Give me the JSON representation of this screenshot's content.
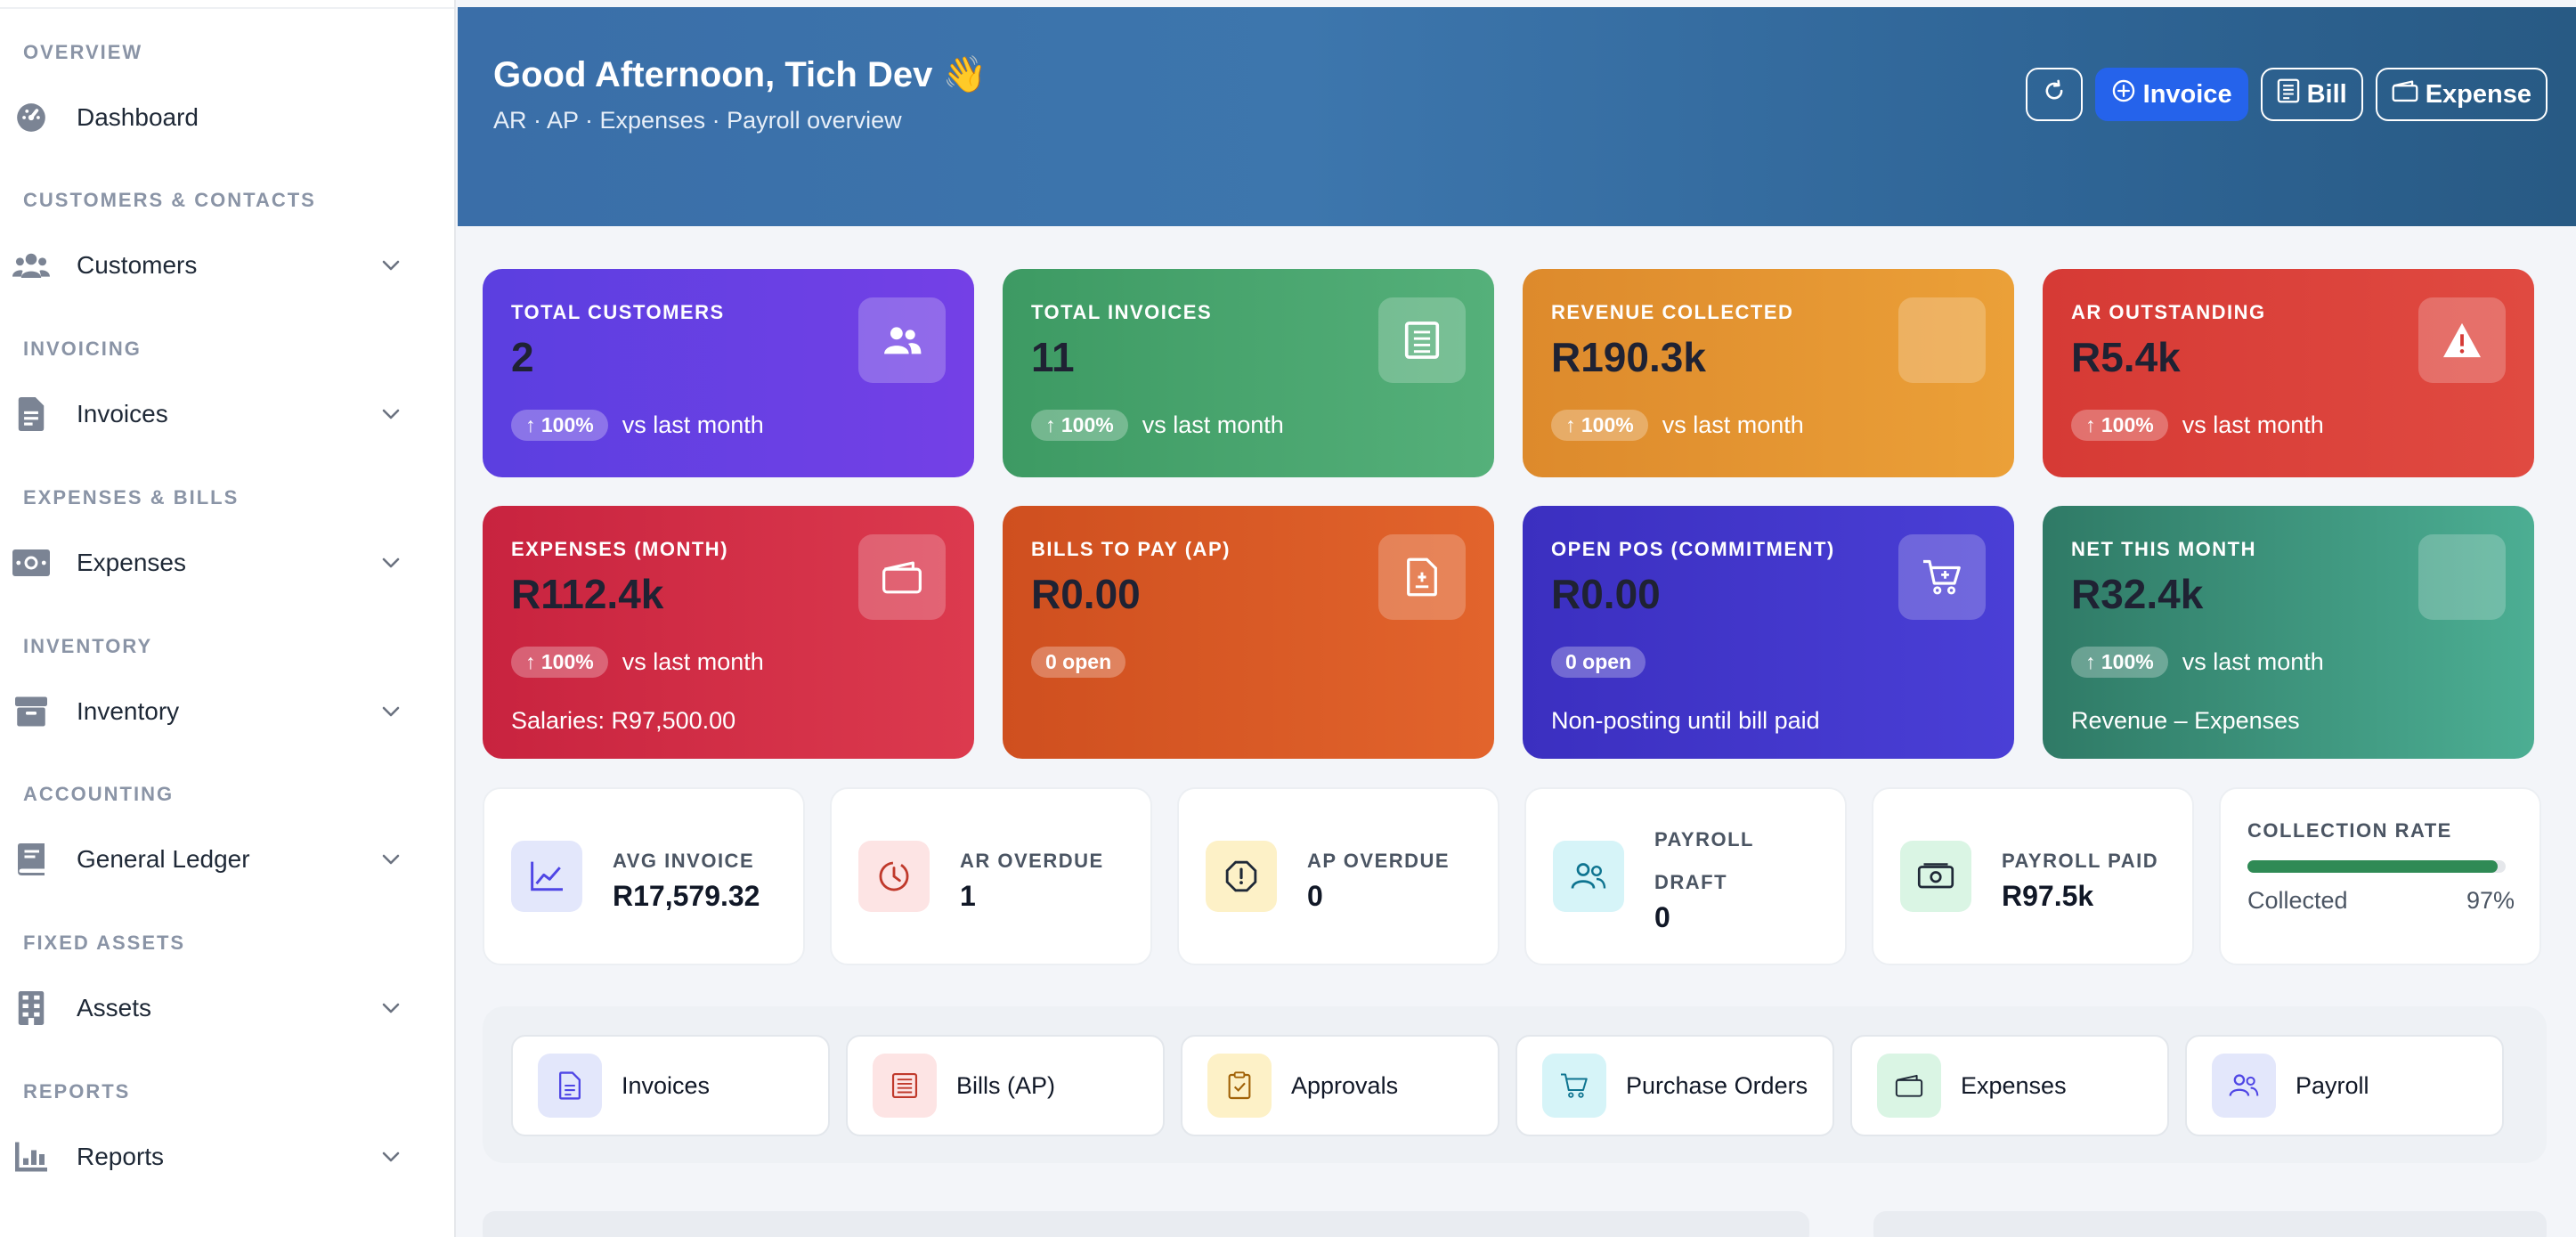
{
  "sidebar": {
    "sections": [
      {
        "title": "OVERVIEW",
        "items": [
          {
            "label": "Dashboard",
            "icon": "dashboard-icon",
            "has_chevron": false
          }
        ]
      },
      {
        "title": "CUSTOMERS & CONTACTS",
        "items": [
          {
            "label": "Customers",
            "icon": "users-icon",
            "has_chevron": true
          }
        ]
      },
      {
        "title": "INVOICING",
        "items": [
          {
            "label": "Invoices",
            "icon": "invoice-icon",
            "has_chevron": true
          }
        ]
      },
      {
        "title": "EXPENSES & BILLS",
        "items": [
          {
            "label": "Expenses",
            "icon": "money-icon",
            "has_chevron": true
          }
        ]
      },
      {
        "title": "INVENTORY",
        "items": [
          {
            "label": "Inventory",
            "icon": "box-icon",
            "has_chevron": true
          }
        ]
      },
      {
        "title": "ACCOUNTING",
        "items": [
          {
            "label": "General Ledger",
            "icon": "ledger-icon",
            "has_chevron": true
          }
        ]
      },
      {
        "title": "FIXED ASSETS",
        "items": [
          {
            "label": "Assets",
            "icon": "building-icon",
            "has_chevron": true
          }
        ]
      },
      {
        "title": "REPORTS",
        "items": [
          {
            "label": "Reports",
            "icon": "report-chart-icon",
            "has_chevron": true
          }
        ]
      }
    ]
  },
  "header": {
    "title": "Good Afternoon, Tich Dev 👋",
    "subtitle": "AR · AP · Expenses · Payroll overview",
    "actions": {
      "refresh_icon": "refresh-icon",
      "invoice_label": "Invoice",
      "bill_label": "Bill",
      "expense_label": "Expense"
    }
  },
  "stats": [
    {
      "label": "TOTAL CUSTOMERS",
      "value": "2",
      "trend": "↑ 100%",
      "trend_text": "vs last month",
      "extra": "",
      "icon": "users-icon",
      "gradient": [
        "#5b3fe0",
        "#7440e6"
      ]
    },
    {
      "label": "TOTAL INVOICES",
      "value": "11",
      "trend": "↑ 100%",
      "trend_text": "vs last month",
      "extra": "",
      "icon": "receipt-icon",
      "gradient": [
        "#3d9a63",
        "#55b07a"
      ]
    },
    {
      "label": "REVENUE COLLECTED",
      "value": "R190.3k",
      "trend": "↑ 100%",
      "trend_text": "vs last month",
      "extra": "",
      "icon": "",
      "gradient": [
        "#dd8a2c",
        "#eba038"
      ]
    },
    {
      "label": "AR OUTSTANDING",
      "value": "R5.4k",
      "trend": "↑ 100%",
      "trend_text": "vs last month",
      "extra": "",
      "icon": "warning-icon",
      "gradient": [
        "#d63a35",
        "#e04a41"
      ]
    },
    {
      "label": "EXPENSES (MONTH)",
      "value": "R112.4k",
      "trend": "↑ 100%",
      "trend_text": "vs last month",
      "extra": "Salaries: R97,500.00",
      "icon": "wallet-icon",
      "gradient": [
        "#c8233f",
        "#dc3a4e"
      ]
    },
    {
      "label": "BILLS TO PAY (AP)",
      "value": "R0.00",
      "trend": "0 open",
      "trend_text": "",
      "extra": "",
      "icon": "bill-icon",
      "gradient": [
        "#cf4f1f",
        "#e2642c"
      ]
    },
    {
      "label": "OPEN POS (COMMITMENT)",
      "value": "R0.00",
      "trend": "0 open",
      "trend_text": "",
      "extra": "Non-posting until bill paid",
      "icon": "cart-icon",
      "gradient": [
        "#3b2fc0",
        "#4a3fd6"
      ]
    },
    {
      "label": "NET THIS MONTH",
      "value": "R32.4k",
      "trend": "↑ 100%",
      "trend_text": "vs last month",
      "extra": "Revenue – Expenses",
      "icon": "",
      "gradient": [
        "#2f7a66",
        "#4cae93"
      ]
    }
  ],
  "mini_stats": [
    {
      "label": "AVG INVOICE",
      "value": "R17,579.32",
      "icon": "trend-chart-icon",
      "icon_bg": "#e3e7fb",
      "icon_color": "#4f46e5"
    },
    {
      "label": "AR OVERDUE",
      "value": "1",
      "icon": "clock-icon",
      "icon_bg": "#fde4e4",
      "icon_color": "#c0392b"
    },
    {
      "label": "AP OVERDUE",
      "value": "0",
      "icon": "alert-octagon-icon",
      "icon_bg": "#fdf1c7",
      "icon_color": "#a16207"
    },
    {
      "label_line1": "PAYROLL",
      "label_line2": "DRAFT",
      "value": "0",
      "icon": "users-outline-icon",
      "icon_bg": "#d6f4f8",
      "icon_color": "#0e7490"
    },
    {
      "label": "PAYROLL PAID",
      "value": "R97.5k",
      "icon": "cash-icon",
      "icon_bg": "#daf5e4",
      "icon_color": "#15803d"
    }
  ],
  "collection": {
    "label": "COLLECTION RATE",
    "caption": "Collected",
    "percent_text": "97%",
    "percent": 97,
    "bar_color": "#2f8a55"
  },
  "quick_links": [
    {
      "label": "Invoices",
      "icon": "document-icon",
      "icon_bg": "#e3e7fb",
      "icon_color": "#4f46e5"
    },
    {
      "label": "Bills (AP)",
      "icon": "receipt-list-icon",
      "icon_bg": "#fde4e4",
      "icon_color": "#c0392b"
    },
    {
      "label": "Approvals",
      "icon": "clipboard-check-icon",
      "icon_bg": "#fdf1c7",
      "icon_color": "#a16207"
    },
    {
      "label": "Purchase Orders",
      "icon": "cart-icon",
      "icon_bg": "#d6f4f8",
      "icon_color": "#0e7490"
    },
    {
      "label": "Expenses",
      "icon": "wallet-icon",
      "icon_bg": "#daf5e4",
      "icon_color": "#15803d"
    },
    {
      "label": "Payroll",
      "icon": "users-outline-icon",
      "icon_bg": "#e3e7fb",
      "icon_color": "#4f46e5"
    }
  ]
}
